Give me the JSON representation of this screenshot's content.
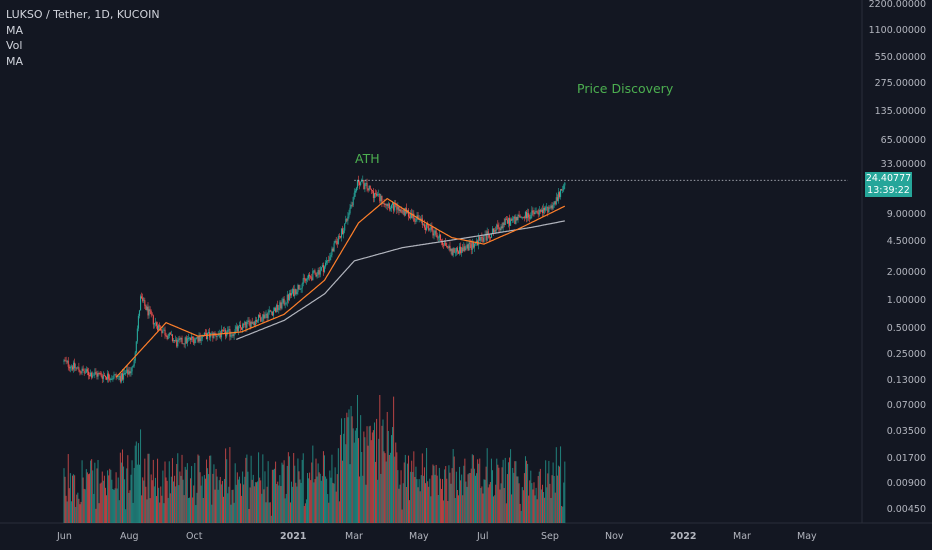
{
  "legend": {
    "symbol": "LUKSO / Tether, 1D, KUCOIN",
    "indicators": [
      "MA",
      "Vol",
      "MA"
    ]
  },
  "annotations": {
    "ath": "ATH",
    "price_discovery": "Price Discovery"
  },
  "price_scale": {
    "labels": [
      "2200.00000",
      "1100.00000",
      "550.00000",
      "275.00000",
      "135.00000",
      "65.00000",
      "33.00000",
      "9.00000",
      "4.50000",
      "2.00000",
      "1.00000",
      "0.50000",
      "0.25000",
      "0.13000",
      "0.07000",
      "0.03500",
      "0.01700",
      "0.00900",
      "0.00450"
    ],
    "last_price": "24.40777",
    "countdown": "13:39:22"
  },
  "time_scale": {
    "labels": [
      {
        "text": "Jun",
        "bold": false
      },
      {
        "text": "Aug",
        "bold": false
      },
      {
        "text": "Oct",
        "bold": false
      },
      {
        "text": "2021",
        "bold": true
      },
      {
        "text": "Mar",
        "bold": false
      },
      {
        "text": "May",
        "bold": false
      },
      {
        "text": "Jul",
        "bold": false
      },
      {
        "text": "Sep",
        "bold": false
      },
      {
        "text": "Nov",
        "bold": false
      },
      {
        "text": "2022",
        "bold": true
      },
      {
        "text": "Mar",
        "bold": false
      },
      {
        "text": "May",
        "bold": false
      }
    ]
  },
  "colors": {
    "background": "#131722",
    "up": "#26a69a",
    "down": "#ef5350",
    "ma_fast": "#ff7f2a",
    "ma_slow": "#b2b5be",
    "annotation": "#4caf50"
  },
  "chart_data": {
    "type": "candlestick",
    "scale": "log",
    "interval": "1D",
    "price_series": [
      {
        "date": "2020-06-01",
        "close": 0.35
      },
      {
        "date": "2020-06-20",
        "close": 0.27
      },
      {
        "date": "2020-07-10",
        "close": 0.25
      },
      {
        "date": "2020-07-25",
        "close": 0.24
      },
      {
        "date": "2020-08-05",
        "close": 0.3
      },
      {
        "date": "2020-08-12",
        "close": 1.6
      },
      {
        "date": "2020-08-25",
        "close": 0.9
      },
      {
        "date": "2020-09-15",
        "close": 0.55
      },
      {
        "date": "2020-10-10",
        "close": 0.65
      },
      {
        "date": "2020-11-05",
        "close": 0.7
      },
      {
        "date": "2020-12-01",
        "close": 1.0
      },
      {
        "date": "2020-12-20",
        "close": 1.3
      },
      {
        "date": "2021-01-10",
        "close": 2.3
      },
      {
        "date": "2021-02-01",
        "close": 3.5
      },
      {
        "date": "2021-02-20",
        "close": 9.5
      },
      {
        "date": "2021-03-05",
        "close": 28.0
      },
      {
        "date": "2021-03-20",
        "close": 20.0
      },
      {
        "date": "2021-04-05",
        "close": 15.0
      },
      {
        "date": "2021-04-25",
        "close": 12.0
      },
      {
        "date": "2021-05-15",
        "close": 8.0
      },
      {
        "date": "2021-06-01",
        "close": 5.0
      },
      {
        "date": "2021-06-15",
        "close": 5.5
      },
      {
        "date": "2021-07-01",
        "close": 7.0
      },
      {
        "date": "2021-07-20",
        "close": 10.0
      },
      {
        "date": "2021-08-10",
        "close": 12.0
      },
      {
        "date": "2021-08-25",
        "close": 13.0
      },
      {
        "date": "2021-09-05",
        "close": 16.0
      },
      {
        "date": "2021-09-15",
        "close": 24.40777
      }
    ],
    "ma_fast": [
      {
        "date": "2020-07-20",
        "value": 0.24
      },
      {
        "date": "2020-08-15",
        "value": 0.5
      },
      {
        "date": "2020-09-05",
        "value": 0.9
      },
      {
        "date": "2020-10-05",
        "value": 0.65
      },
      {
        "date": "2020-11-15",
        "value": 0.72
      },
      {
        "date": "2020-12-25",
        "value": 1.1
      },
      {
        "date": "2021-02-01",
        "value": 2.5
      },
      {
        "date": "2021-03-05",
        "value": 10.0
      },
      {
        "date": "2021-04-01",
        "value": 18.0
      },
      {
        "date": "2021-05-01",
        "value": 11.0
      },
      {
        "date": "2021-06-01",
        "value": 7.0
      },
      {
        "date": "2021-07-01",
        "value": 6.0
      },
      {
        "date": "2021-08-01",
        "value": 8.5
      },
      {
        "date": "2021-09-15",
        "value": 15.0
      }
    ],
    "ma_slow": [
      {
        "date": "2020-11-10",
        "value": 0.6
      },
      {
        "date": "2020-12-25",
        "value": 0.95
      },
      {
        "date": "2021-02-01",
        "value": 1.8
      },
      {
        "date": "2021-03-01",
        "value": 4.0
      },
      {
        "date": "2021-04-15",
        "value": 5.5
      },
      {
        "date": "2021-06-15",
        "value": 7.0
      },
      {
        "date": "2021-08-15",
        "value": 9.0
      },
      {
        "date": "2021-09-15",
        "value": 10.5
      }
    ],
    "ath_level": 28.0,
    "volume_peak": 0.08
  }
}
